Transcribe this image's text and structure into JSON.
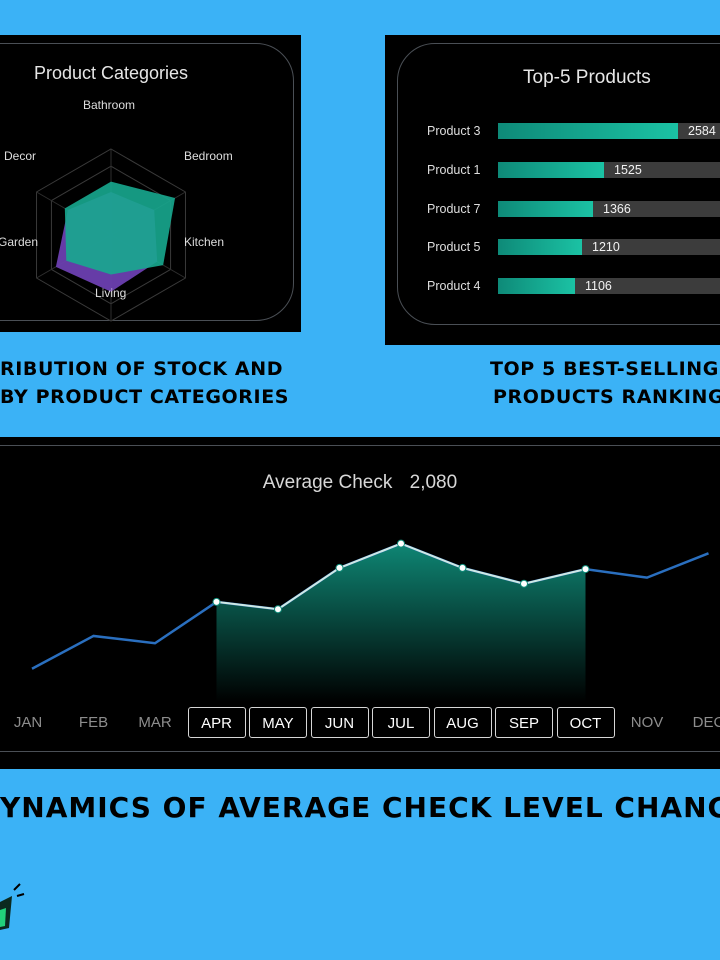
{
  "radar": {
    "title": "Product Categories",
    "axes": [
      "Bathroom",
      "Bedroom",
      "Kitchen",
      "Living",
      "Garden",
      "Decor"
    ],
    "colors": {
      "series_a": "#16a08c",
      "series_b": "#6b3fb0"
    }
  },
  "radar_caption": {
    "line1": "RIBUTION OF STOCK AND",
    "line2": "BY PRODUCT CATEGORIES"
  },
  "top_products": {
    "title": "Top-5 Products",
    "items": [
      {
        "label": "Product 3",
        "value": "2584"
      },
      {
        "label": "Product 1",
        "value": "1525"
      },
      {
        "label": "Product 7",
        "value": "1366"
      },
      {
        "label": "Product 5",
        "value": "1210"
      },
      {
        "label": "Product 4",
        "value": "1106"
      }
    ],
    "bar_color": "#1bb89c"
  },
  "top_caption": {
    "line1": "TOP 5 BEST-SELLING",
    "line2": "PRODUCTS RANKING"
  },
  "avg_check": {
    "title": "Average Check",
    "value": "2,080",
    "months": [
      "JAN",
      "FEB",
      "MAR",
      "APR",
      "MAY",
      "JUN",
      "JUL",
      "AUG",
      "SEP",
      "OCT",
      "NOV",
      "DEC"
    ],
    "highlighted_months": [
      "APR",
      "MAY",
      "JUN",
      "JUL",
      "AUG",
      "SEP",
      "OCT"
    ],
    "colors": {
      "line": "#2a6fbf",
      "highlight_line": "#cfe9e4",
      "area": "#0f8d7a"
    }
  },
  "chart_data": {
    "type": "line",
    "x": [
      "JAN",
      "FEB",
      "MAR",
      "APR",
      "MAY",
      "JUN",
      "JUL",
      "AUG",
      "SEP",
      "OCT",
      "NOV",
      "DEC"
    ],
    "series": [
      {
        "values": [
          1550,
          1820,
          1760,
          2100,
          2040,
          2380,
          2580,
          2380,
          2250,
          2370,
          2300,
          2500
        ]
      }
    ],
    "ylim": [
      1400,
      2700
    ]
  },
  "bottom_caption": "YNAMICS OF AVERAGE CHECK LEVEL CHANGE"
}
